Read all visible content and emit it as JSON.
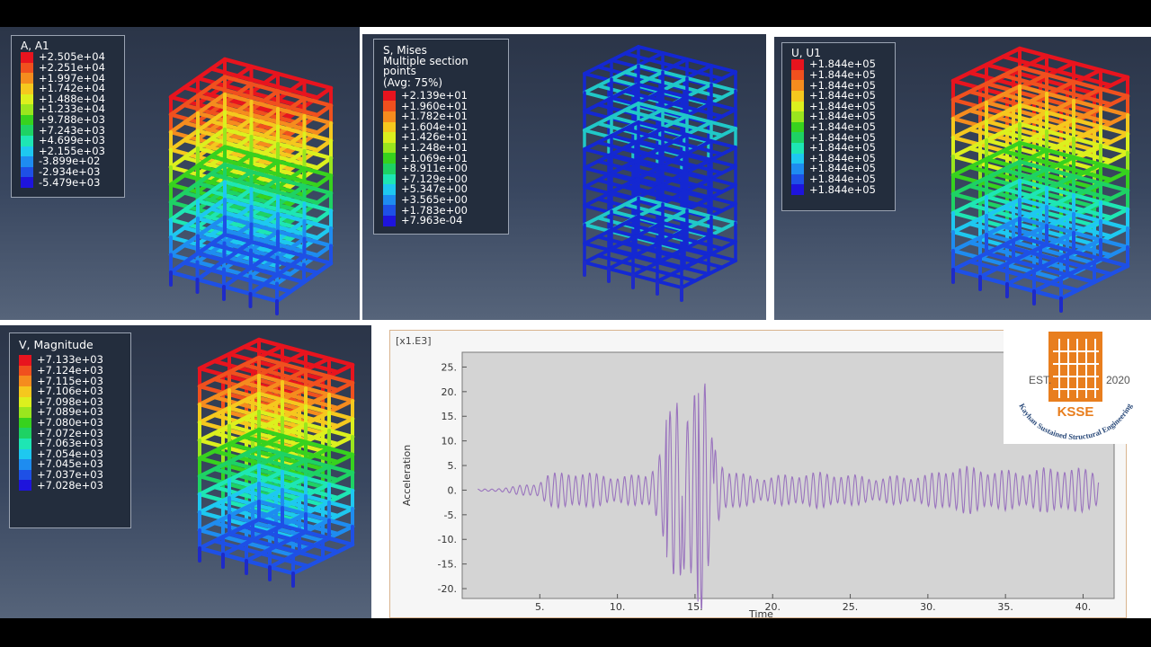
{
  "panels": {
    "a1": {
      "title": "A, A1",
      "values": [
        "+2.505e+04",
        "+2.251e+04",
        "+1.997e+04",
        "+1.742e+04",
        "+1.488e+04",
        "+1.233e+04",
        "+9.788e+03",
        "+7.243e+03",
        "+4.699e+03",
        "+2.155e+03",
        "-3.899e+02",
        "-2.934e+03",
        "-5.479e+03"
      ]
    },
    "mises": {
      "title": "S, Mises",
      "subtitle1": "Multiple section points",
      "subtitle2": "(Avg: 75%)",
      "values": [
        "+2.139e+01",
        "+1.960e+01",
        "+1.782e+01",
        "+1.604e+01",
        "+1.426e+01",
        "+1.248e+01",
        "+1.069e+01",
        "+8.911e+00",
        "+7.129e+00",
        "+5.347e+00",
        "+3.565e+00",
        "+1.783e+00",
        "+7.963e-04"
      ]
    },
    "u1": {
      "title": "U, U1",
      "values": [
        "+1.844e+05",
        "+1.844e+05",
        "+1.844e+05",
        "+1.844e+05",
        "+1.844e+05",
        "+1.844e+05",
        "+1.844e+05",
        "+1.844e+05",
        "+1.844e+05",
        "+1.844e+05",
        "+1.844e+05",
        "+1.844e+05",
        "+1.844e+05"
      ]
    },
    "vmag": {
      "title": "V, Magnitude",
      "values": [
        "+7.133e+03",
        "+7.124e+03",
        "+7.115e+03",
        "+7.106e+03",
        "+7.098e+03",
        "+7.089e+03",
        "+7.080e+03",
        "+7.072e+03",
        "+7.063e+03",
        "+7.054e+03",
        "+7.045e+03",
        "+7.037e+03",
        "+7.028e+03"
      ]
    }
  },
  "legend_colors": [
    "#e8141e",
    "#f0501e",
    "#f58c1e",
    "#f5c81e",
    "#dcf01e",
    "#9ae61e",
    "#37d21e",
    "#1ed264",
    "#1ee6b4",
    "#1ec8f0",
    "#1e8cf0",
    "#1e50e6",
    "#1e14dc"
  ],
  "chart_data": {
    "type": "line",
    "scale_label": "[x1.E3]",
    "xlabel": "Time",
    "ylabel": "Acceleration",
    "xlim": [
      0,
      42
    ],
    "ylim": [
      -22,
      28
    ],
    "x_ticks": [
      "5.",
      "10.",
      "15.",
      "20.",
      "25.",
      "30.",
      "35.",
      "40."
    ],
    "x_tick_values": [
      5,
      10,
      15,
      20,
      25,
      30,
      35,
      40
    ],
    "y_ticks": [
      "25.",
      "20.",
      "15.",
      "10.",
      "5.",
      "0.",
      "-5.",
      "-10.",
      "-15.",
      "-20."
    ],
    "y_tick_values": [
      25,
      20,
      15,
      10,
      5,
      0,
      -5,
      -10,
      -15,
      -20
    ],
    "series": [
      {
        "color": "#9a74be",
        "envelope": [
          [
            1.0,
            0.2
          ],
          [
            2.0,
            0.3
          ],
          [
            3.0,
            0.8
          ],
          [
            4.0,
            1.5
          ],
          [
            4.8,
            2.0
          ],
          [
            5.5,
            4.0
          ],
          [
            7.0,
            4.0
          ],
          [
            8.5,
            3.5
          ],
          [
            10.0,
            3.5
          ],
          [
            11.0,
            4.0
          ],
          [
            12.0,
            5.5
          ],
          [
            12.5,
            9.0
          ],
          [
            13.0,
            13.0
          ],
          [
            13.5,
            18.0
          ],
          [
            14.0,
            19.0
          ],
          [
            14.5,
            14.0
          ],
          [
            15.0,
            20.0
          ],
          [
            15.5,
            27.0
          ],
          [
            16.0,
            12.0
          ],
          [
            16.5,
            8.0
          ],
          [
            17.0,
            5.0
          ],
          [
            18.0,
            4.0
          ],
          [
            20.0,
            4.0
          ],
          [
            22.0,
            4.0
          ],
          [
            24.0,
            3.5
          ],
          [
            26.0,
            3.5
          ],
          [
            28.0,
            4.0
          ],
          [
            30.0,
            3.5
          ],
          [
            32.0,
            5.0
          ],
          [
            34.0,
            5.5
          ],
          [
            36.0,
            5.5
          ],
          [
            38.0,
            5.0
          ],
          [
            40.0,
            4.5
          ],
          [
            41.0,
            4.5
          ]
        ],
        "period": 0.45
      }
    ]
  },
  "logo": {
    "est": "EST.",
    "year": "2020",
    "abbr": "KSSE",
    "name": "Kayhan Sustained Structural Engineering",
    "color": "#e87e1e"
  }
}
